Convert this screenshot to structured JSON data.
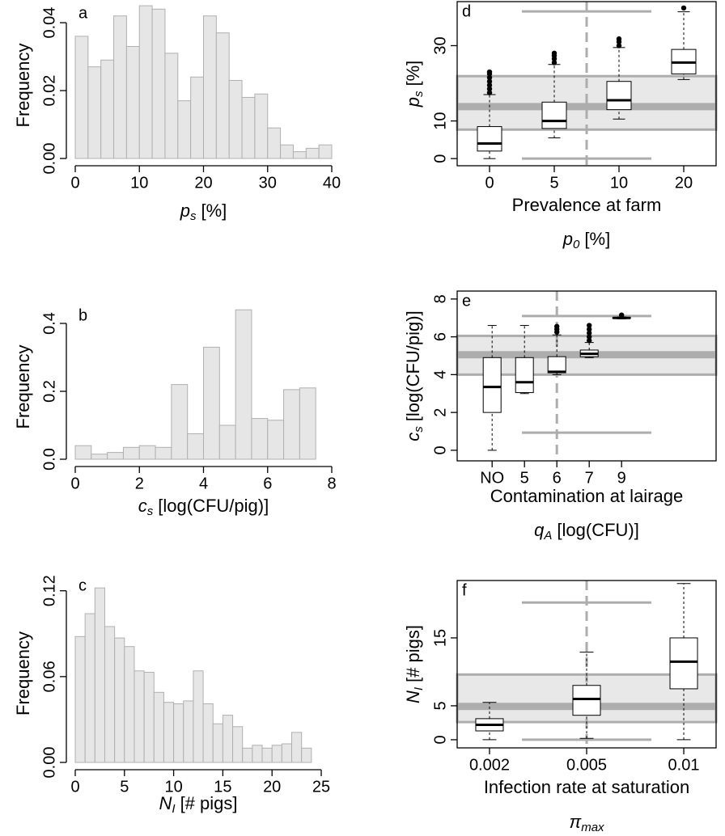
{
  "chart_data": [
    {
      "type": "histogram",
      "label": "a",
      "y_label": "Frequency",
      "x_label": {
        "symbol": "p",
        "subscript": "s",
        "unit": "[%]"
      },
      "bins": [
        0,
        2,
        4,
        6,
        8,
        10,
        12,
        14,
        16,
        18,
        20,
        22,
        24,
        26,
        28,
        30,
        32,
        34,
        36,
        38,
        40
      ],
      "values": [
        0.036,
        0.027,
        0.029,
        0.042,
        0.033,
        0.045,
        0.044,
        0.031,
        0.017,
        0.024,
        0.042,
        0.037,
        0.023,
        0.018,
        0.019,
        0.009,
        0.004,
        0.002,
        0.003,
        0.004
      ],
      "color": "#e6e6e6",
      "xlim": [
        0,
        40
      ],
      "xticks": [
        0,
        10,
        20,
        30,
        40
      ],
      "ylim": [
        0,
        0.0455
      ],
      "yticks": [
        {
          "value": 0,
          "label": "0.00"
        },
        {
          "value": 0.02,
          "label": "0.02"
        },
        {
          "value": 0.04,
          "label": "0.04"
        }
      ]
    },
    {
      "type": "histogram",
      "label": "b",
      "y_label": "Frequency",
      "x_label": {
        "symbol": "c",
        "subscript": "s",
        "unit": "[log(CFU/pig)]"
      },
      "bins": [
        0,
        0.5,
        1,
        1.5,
        2,
        2.5,
        3,
        3.5,
        4,
        4.5,
        5,
        5.5,
        6,
        6.5,
        7,
        7.5
      ],
      "values": [
        0.04,
        0.015,
        0.02,
        0.035,
        0.04,
        0.035,
        0.22,
        0.075,
        0.33,
        0.1,
        0.44,
        0.12,
        0.115,
        0.205,
        0.21
      ],
      "color": "#e6e6e6",
      "xlim": [
        0,
        8
      ],
      "xticks": [
        0,
        2,
        4,
        6,
        8
      ],
      "ylim": [
        0,
        0.45
      ],
      "yticks": [
        {
          "value": 0,
          "label": "0.0"
        },
        0.2,
        0.4
      ]
    },
    {
      "type": "histogram",
      "label": "c",
      "y_label": "Frequency",
      "x_label": {
        "symbol": "N",
        "subscript": "I",
        "unit": "[# pigs]"
      },
      "bins": [
        0,
        1,
        2,
        3,
        4,
        5,
        6,
        7,
        8,
        9,
        10,
        11,
        12,
        13,
        14,
        15,
        16,
        17,
        18,
        19,
        20,
        21,
        22,
        23,
        24
      ],
      "values": [
        0.088,
        0.104,
        0.122,
        0.095,
        0.087,
        0.081,
        0.064,
        0.063,
        0.049,
        0.042,
        0.041,
        0.043,
        0.064,
        0.041,
        0.027,
        0.033,
        0.025,
        0.01,
        0.012,
        0.01,
        0.012,
        0.013,
        0.021,
        0.01
      ],
      "color": "#e6e6e6",
      "xlim": [
        0,
        25
      ],
      "xticks": [
        0,
        5,
        10,
        15,
        20,
        25
      ],
      "ylim": [
        0,
        0.13
      ],
      "yticks": [
        {
          "value": 0,
          "label": "0.00"
        },
        0.06,
        0.12
      ]
    },
    {
      "type": "box",
      "label": "d",
      "x_label": "Prevalence at farm",
      "x_sublabel": {
        "symbol": "p",
        "subscript": "0",
        "unit": "[%]"
      },
      "y_label": {
        "symbol": "p",
        "subscript": "s",
        "unit": "[%]"
      },
      "categories": [
        "0",
        "5",
        "10",
        "20"
      ],
      "xlim": [
        -0.5,
        3.5
      ],
      "boxes": [
        {
          "min": 0,
          "q1": 2,
          "median": 4,
          "q3": 8.5,
          "max": 17,
          "outliers": [
            17.5,
            18.5,
            19.5,
            20.5,
            21.5,
            22.5,
            23
          ]
        },
        {
          "min": 5.5,
          "q1": 8,
          "median": 10,
          "q3": 15,
          "max": 25,
          "outliers": [
            25.5,
            26.5,
            27.3,
            28
          ]
        },
        {
          "min": 10.5,
          "q1": 13,
          "median": 15.5,
          "q3": 20.5,
          "max": 29.5,
          "outliers": [
            30,
            31,
            31.8
          ]
        },
        {
          "min": 21,
          "q1": 22.5,
          "median": 25.5,
          "q3": 29,
          "max": 39,
          "outliers": [
            40
          ]
        }
      ],
      "reference": {
        "low": 7.7,
        "center": 13.8,
        "high": 21.9,
        "min": 0,
        "max": 39.1,
        "x": 1.5
      },
      "ylim": [
        -1.9,
        41.7
      ],
      "yticks": [
        0,
        10,
        30
      ]
    },
    {
      "type": "box",
      "label": "e",
      "x_label": "Contamination at lairage",
      "x_sublabel": {
        "symbol": "q",
        "subscript": "A",
        "unit": "[log(CFU)]"
      },
      "y_label": {
        "symbol": "c",
        "subscript": "s",
        "unit": "[log(CFU/pig)]"
      },
      "categories": [
        "NO",
        "5",
        "6",
        "7",
        "9"
      ],
      "xlim": [
        -1.08,
        6.92
      ],
      "boxes": [
        {
          "min": 0,
          "q1": 2,
          "median": 3.35,
          "q3": 4.9,
          "max": 6.6
        },
        {
          "min": 3,
          "q1": 3.05,
          "median": 3.6,
          "q3": 4.9,
          "max": 6.6
        },
        {
          "min": 4,
          "q1": 4.1,
          "median": 4.15,
          "q3": 4.95,
          "max": 6.1,
          "outliers": [
            6.25,
            6.4,
            6.55
          ]
        },
        {
          "min": 4.9,
          "q1": 4.95,
          "median": 5.1,
          "q3": 5.3,
          "max": 5.7,
          "outliers": [
            5.8,
            6,
            6.2,
            6.4,
            6.6
          ]
        },
        {
          "min": 6.95,
          "q1": 6.98,
          "median": 7,
          "q3": 7.02,
          "max": 7.05,
          "outliers": [
            7.15
          ]
        }
      ],
      "reference": {
        "low": 4,
        "center": 5.05,
        "high": 6.05,
        "min": 0.93,
        "max": 7.1,
        "x": 2
      },
      "ylim": [
        -0.56,
        8.42
      ],
      "yticks": [
        0,
        2,
        4,
        6,
        8
      ]
    },
    {
      "type": "box",
      "label": "f",
      "x_label": "Infection rate at saturation",
      "x_sublabel": {
        "symbol": "π",
        "subscript": "max"
      },
      "y_label": {
        "symbol": "N",
        "subscript": "I",
        "unit": "[# pigs]"
      },
      "categories": [
        "0.002",
        "0.005",
        "0.01"
      ],
      "xlim": [
        -0.333,
        2.333
      ],
      "boxes": [
        {
          "min": 0,
          "q1": 1.3,
          "median": 2.2,
          "q3": 3.1,
          "max": 5.5
        },
        {
          "min": 0.2,
          "q1": 3.6,
          "median": 6,
          "q3": 8,
          "max": 12.9
        },
        {
          "min": 0,
          "q1": 7.5,
          "median": 11.5,
          "q3": 15,
          "max": 23
        }
      ],
      "reference": {
        "low": 2.6,
        "center": 4.9,
        "high": 9.6,
        "min": 0,
        "max": 20.2,
        "x": 1
      },
      "ylim": [
        -1.2,
        23.45
      ],
      "yticks": [
        0,
        5,
        15
      ]
    }
  ]
}
